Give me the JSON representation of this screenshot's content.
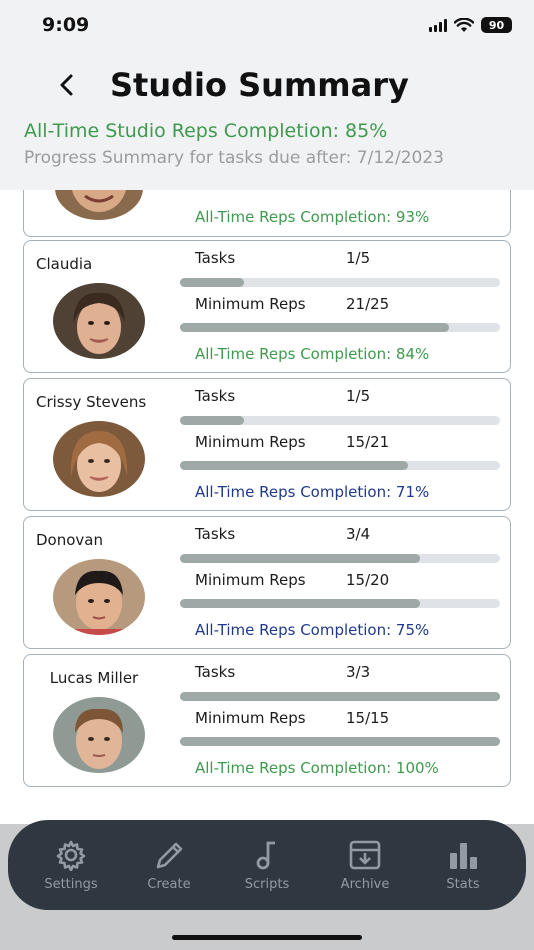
{
  "status_bar": {
    "time": "9:09",
    "battery": "90"
  },
  "header": {
    "title": "Studio Summary",
    "overall_completion": "All-Time Studio Reps Completion: 85%",
    "progress_summary": "Progress Summary for tasks due after: 7/12/2023"
  },
  "accent_colors": {
    "green": "#3f9a4e",
    "blue": "#1f3a8a",
    "bar_fill": "#9ea8a6",
    "bar_track": "#dfe3e7"
  },
  "students": [
    {
      "name": "",
      "alltime": "All-Time Reps Completion: 93%",
      "alltime_color": "green"
    },
    {
      "name": "Claudia",
      "tasks_label": "Tasks",
      "tasks_value": "1/5",
      "tasks_fraction": 0.2,
      "reps_label": "Minimum Reps",
      "reps_value": "21/25",
      "reps_fraction": 0.84,
      "alltime": "All-Time Reps Completion: 84%",
      "alltime_color": "green"
    },
    {
      "name": "Crissy Stevens",
      "tasks_label": "Tasks",
      "tasks_value": "1/5",
      "tasks_fraction": 0.2,
      "reps_label": "Minimum Reps",
      "reps_value": "15/21",
      "reps_fraction": 0.714,
      "alltime": "All-Time Reps Completion: 71%",
      "alltime_color": "blue"
    },
    {
      "name": "Donovan",
      "tasks_label": "Tasks",
      "tasks_value": "3/4",
      "tasks_fraction": 0.75,
      "reps_label": "Minimum Reps",
      "reps_value": "15/20",
      "reps_fraction": 0.75,
      "alltime": "All-Time Reps Completion: 75%",
      "alltime_color": "blue"
    },
    {
      "name": "Lucas Miller",
      "tasks_label": "Tasks",
      "tasks_value": "3/3",
      "tasks_fraction": 1.0,
      "reps_label": "Minimum Reps",
      "reps_value": "15/15",
      "reps_fraction": 1.0,
      "alltime": "All-Time Reps Completion: 100%",
      "alltime_color": "green"
    }
  ],
  "tabs": [
    {
      "label": "Settings",
      "icon": "gear-icon"
    },
    {
      "label": "Create",
      "icon": "pencil-icon"
    },
    {
      "label": "Scripts",
      "icon": "music-note-icon"
    },
    {
      "label": "Archive",
      "icon": "archive-box-icon"
    },
    {
      "label": "Stats",
      "icon": "bar-chart-icon"
    }
  ]
}
